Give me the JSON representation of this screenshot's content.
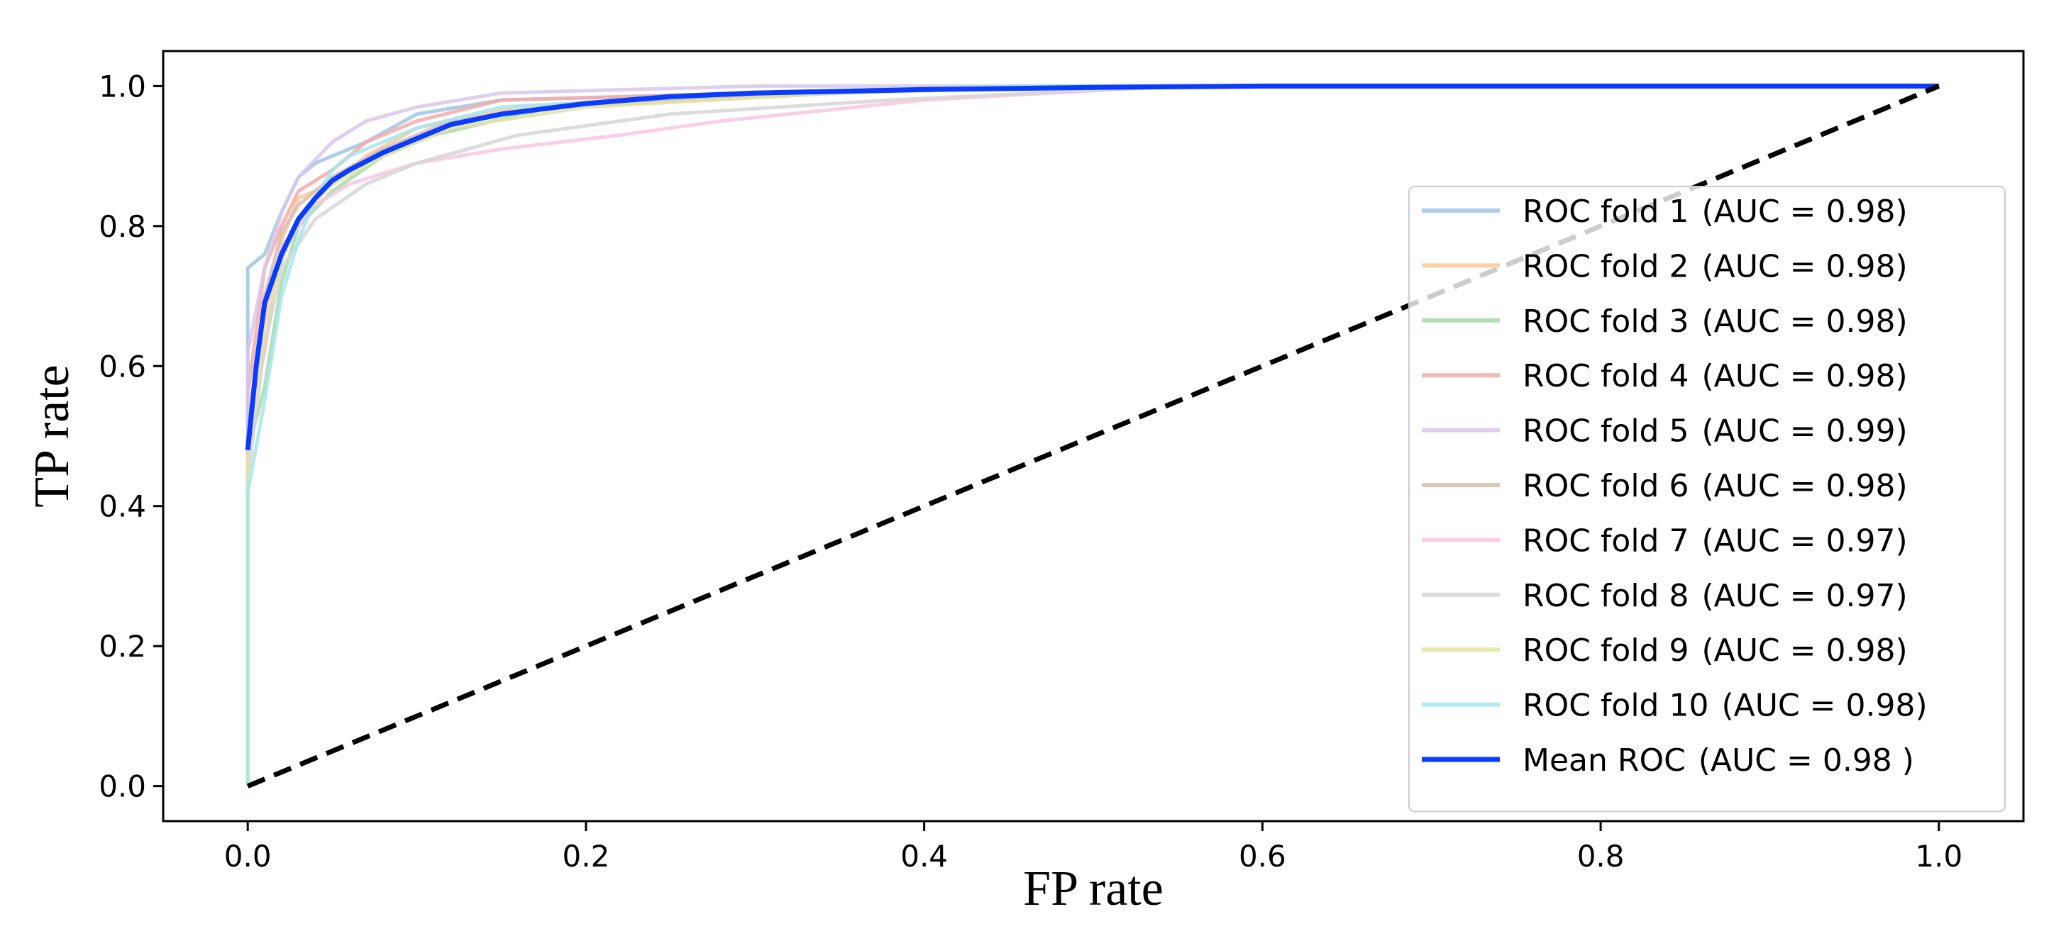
{
  "chart_data": {
    "type": "line",
    "title": "",
    "xlabel": "FP rate",
    "ylabel": "TP rate",
    "xlim": [
      -0.05,
      1.05
    ],
    "ylim": [
      -0.05,
      1.05
    ],
    "x_ticks": [
      "0.0",
      "0.2",
      "0.4",
      "0.6",
      "0.8",
      "1.0"
    ],
    "y_ticks": [
      "0.0",
      "0.2",
      "0.4",
      "0.6",
      "0.8",
      "1.0"
    ],
    "grid": false,
    "legend_position": "right",
    "series": [
      {
        "name": "ROC fold 1",
        "auc_label": "(AUC = 0.98)",
        "color": "#9ec5e3",
        "points": [
          [
            0,
            0
          ],
          [
            0,
            0.74
          ],
          [
            0.01,
            0.76
          ],
          [
            0.02,
            0.82
          ],
          [
            0.03,
            0.87
          ],
          [
            0.04,
            0.89
          ],
          [
            0.05,
            0.9
          ],
          [
            0.07,
            0.92
          ],
          [
            0.1,
            0.96
          ],
          [
            0.15,
            0.98
          ],
          [
            0.3,
            0.99
          ],
          [
            0.45,
            1.0
          ],
          [
            1,
            1
          ]
        ]
      },
      {
        "name": "ROC fold 2",
        "auc_label": "(AUC = 0.98)",
        "color": "#fcc89a",
        "points": [
          [
            0,
            0
          ],
          [
            0,
            0.52
          ],
          [
            0.01,
            0.62
          ],
          [
            0.02,
            0.78
          ],
          [
            0.03,
            0.84
          ],
          [
            0.05,
            0.86
          ],
          [
            0.07,
            0.9
          ],
          [
            0.1,
            0.94
          ],
          [
            0.16,
            0.97
          ],
          [
            0.3,
            0.99
          ],
          [
            0.5,
            1.0
          ],
          [
            1,
            1
          ]
        ]
      },
      {
        "name": "ROC fold 3",
        "auc_label": "(AUC = 0.98)",
        "color": "#a8d9a8",
        "points": [
          [
            0,
            0
          ],
          [
            0,
            0.48
          ],
          [
            0.01,
            0.57
          ],
          [
            0.02,
            0.72
          ],
          [
            0.03,
            0.8
          ],
          [
            0.05,
            0.85
          ],
          [
            0.08,
            0.9
          ],
          [
            0.11,
            0.93
          ],
          [
            0.18,
            0.97
          ],
          [
            0.32,
            0.99
          ],
          [
            0.5,
            1.0
          ],
          [
            1,
            1
          ]
        ]
      },
      {
        "name": "ROC fold 4",
        "auc_label": "(AUC = 0.98)",
        "color": "#f6aaa7",
        "points": [
          [
            0,
            0
          ],
          [
            0,
            0.56
          ],
          [
            0.01,
            0.74
          ],
          [
            0.02,
            0.8
          ],
          [
            0.03,
            0.85
          ],
          [
            0.05,
            0.88
          ],
          [
            0.07,
            0.92
          ],
          [
            0.1,
            0.95
          ],
          [
            0.15,
            0.98
          ],
          [
            0.3,
            0.99
          ],
          [
            0.45,
            1.0
          ],
          [
            1,
            1
          ]
        ]
      },
      {
        "name": "ROC fold 5",
        "auc_label": "(AUC = 0.99)",
        "color": "#d8c7ea",
        "points": [
          [
            0,
            0
          ],
          [
            0,
            0.62
          ],
          [
            0.01,
            0.74
          ],
          [
            0.02,
            0.82
          ],
          [
            0.03,
            0.87
          ],
          [
            0.05,
            0.92
          ],
          [
            0.07,
            0.95
          ],
          [
            0.1,
            0.97
          ],
          [
            0.15,
            0.99
          ],
          [
            0.3,
            1.0
          ],
          [
            1,
            1
          ]
        ]
      },
      {
        "name": "ROC fold 6",
        "auc_label": "(AUC = 0.98)",
        "color": "#d9bcb4",
        "points": [
          [
            0,
            0
          ],
          [
            0,
            0.5
          ],
          [
            0.01,
            0.7
          ],
          [
            0.02,
            0.79
          ],
          [
            0.03,
            0.83
          ],
          [
            0.05,
            0.87
          ],
          [
            0.08,
            0.91
          ],
          [
            0.12,
            0.95
          ],
          [
            0.18,
            0.97
          ],
          [
            0.35,
            0.99
          ],
          [
            0.5,
            1.0
          ],
          [
            1,
            1
          ]
        ]
      },
      {
        "name": "ROC fold 7",
        "auc_label": "(AUC = 0.97)",
        "color": "#f9c6e2",
        "points": [
          [
            0,
            0
          ],
          [
            0,
            0.46
          ],
          [
            0.01,
            0.66
          ],
          [
            0.02,
            0.77
          ],
          [
            0.04,
            0.83
          ],
          [
            0.06,
            0.86
          ],
          [
            0.1,
            0.89
          ],
          [
            0.15,
            0.91
          ],
          [
            0.22,
            0.93
          ],
          [
            0.28,
            0.95
          ],
          [
            0.4,
            0.98
          ],
          [
            0.55,
            1.0
          ],
          [
            1,
            1
          ]
        ]
      },
      {
        "name": "ROC fold 8",
        "auc_label": "(AUC = 0.97)",
        "color": "#d6d6d6",
        "points": [
          [
            0,
            0
          ],
          [
            0,
            0.44
          ],
          [
            0.01,
            0.63
          ],
          [
            0.02,
            0.74
          ],
          [
            0.04,
            0.81
          ],
          [
            0.07,
            0.86
          ],
          [
            0.1,
            0.89
          ],
          [
            0.16,
            0.93
          ],
          [
            0.25,
            0.96
          ],
          [
            0.38,
            0.98
          ],
          [
            0.55,
            1.0
          ],
          [
            1,
            1
          ]
        ]
      },
      {
        "name": "ROC fold 9",
        "auc_label": "(AUC = 0.98)",
        "color": "#e3e3a6",
        "points": [
          [
            0,
            0
          ],
          [
            0,
            0.47
          ],
          [
            0.01,
            0.66
          ],
          [
            0.02,
            0.75
          ],
          [
            0.03,
            0.81
          ],
          [
            0.05,
            0.86
          ],
          [
            0.08,
            0.9
          ],
          [
            0.12,
            0.94
          ],
          [
            0.2,
            0.97
          ],
          [
            0.35,
            0.99
          ],
          [
            0.5,
            1.0
          ],
          [
            1,
            1
          ]
        ]
      },
      {
        "name": "ROC fold 10",
        "auc_label": "(AUC = 0.98)",
        "color": "#a6e6ec",
        "points": [
          [
            0,
            0
          ],
          [
            0,
            0.42
          ],
          [
            0.01,
            0.55
          ],
          [
            0.02,
            0.7
          ],
          [
            0.03,
            0.78
          ],
          [
            0.04,
            0.84
          ],
          [
            0.05,
            0.88
          ],
          [
            0.06,
            0.9
          ],
          [
            0.1,
            0.94
          ],
          [
            0.15,
            0.97
          ],
          [
            0.3,
            0.99
          ],
          [
            0.45,
            1.0
          ],
          [
            1,
            1
          ]
        ]
      },
      {
        "name": "Mean ROC",
        "auc_label": "(AUC = 0.98 )",
        "color": "#0a3cff",
        "points": [
          [
            0,
            0.48
          ],
          [
            0.005,
            0.6
          ],
          [
            0.01,
            0.69
          ],
          [
            0.02,
            0.76
          ],
          [
            0.03,
            0.81
          ],
          [
            0.04,
            0.84
          ],
          [
            0.05,
            0.865
          ],
          [
            0.06,
            0.88
          ],
          [
            0.08,
            0.905
          ],
          [
            0.1,
            0.925
          ],
          [
            0.12,
            0.945
          ],
          [
            0.15,
            0.96
          ],
          [
            0.2,
            0.975
          ],
          [
            0.25,
            0.985
          ],
          [
            0.3,
            0.99
          ],
          [
            0.4,
            0.995
          ],
          [
            0.5,
            0.998
          ],
          [
            0.6,
            1.0
          ],
          [
            1,
            1
          ]
        ]
      },
      {
        "name": "",
        "auc_label": "",
        "color": "#000000",
        "dashed": true,
        "points": [
          [
            0,
            0
          ],
          [
            1,
            1
          ]
        ]
      }
    ]
  }
}
